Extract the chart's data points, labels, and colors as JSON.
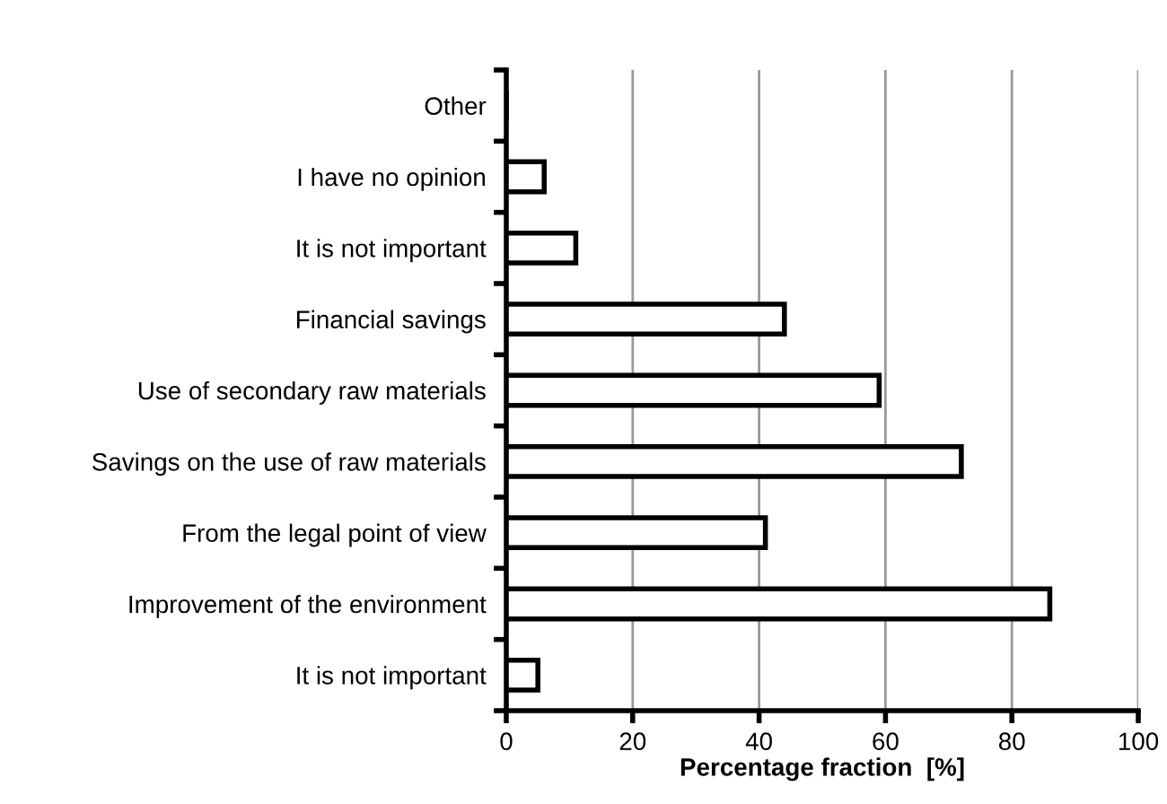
{
  "chart_data": {
    "type": "bar",
    "orientation": "horizontal",
    "xlabel": "Percentage fraction  [%]",
    "categories": [
      "Other",
      "I have no opinion",
      "It is not important",
      "Financial savings",
      "Use of secondary raw materials",
      "Savings on the use of raw materials",
      "From the legal point of view",
      "Improvement of the environment",
      "It is not important"
    ],
    "values": [
      0,
      6,
      11,
      44,
      59,
      72,
      41,
      86,
      5
    ],
    "color": "#ffffff",
    "xlim": [
      0,
      100
    ],
    "xticks": [
      0,
      20,
      40,
      60,
      80,
      100
    ],
    "grid": "x"
  }
}
